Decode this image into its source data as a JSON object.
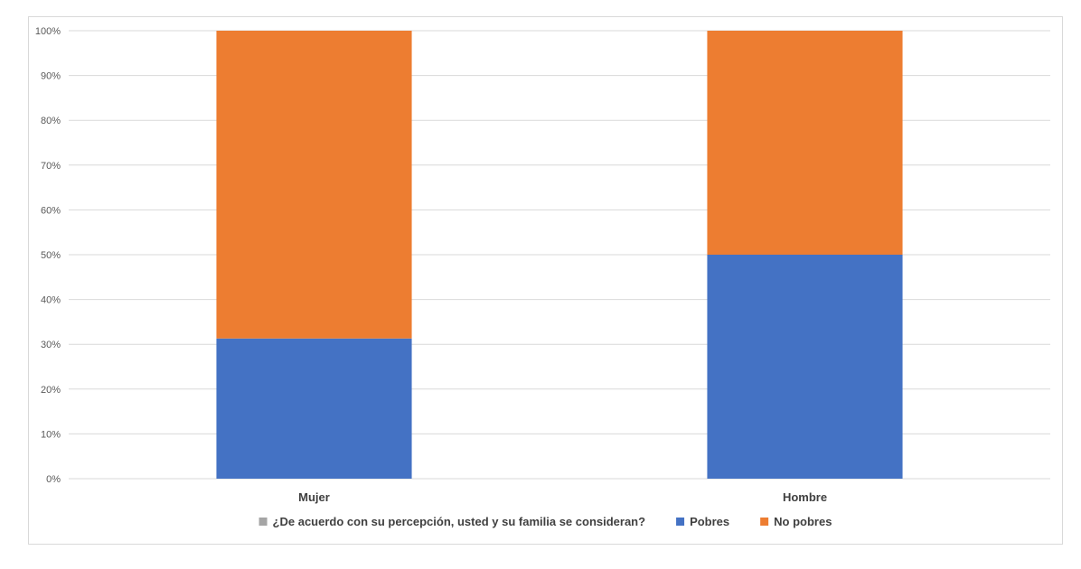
{
  "chart_data": {
    "type": "bar",
    "stacked": true,
    "percent": true,
    "categories": [
      "Mujer",
      "Hombre"
    ],
    "series": [
      {
        "name": "¿De acuerdo con su percepción, usted y su familia se consideran?",
        "values": [
          0,
          0
        ],
        "color": "#a5a5a5"
      },
      {
        "name": "Pobres",
        "values": [
          31.3,
          50.0
        ],
        "color": "#4472c4"
      },
      {
        "name": "No pobres",
        "values": [
          68.7,
          50.0
        ],
        "color": "#ed7d31"
      }
    ],
    "ylim": [
      0,
      100
    ],
    "yticks": [
      "0%",
      "10%",
      "20%",
      "30%",
      "40%",
      "50%",
      "60%",
      "70%",
      "80%",
      "90%",
      "100%"
    ],
    "grid": true,
    "legend_position": "bottom"
  }
}
